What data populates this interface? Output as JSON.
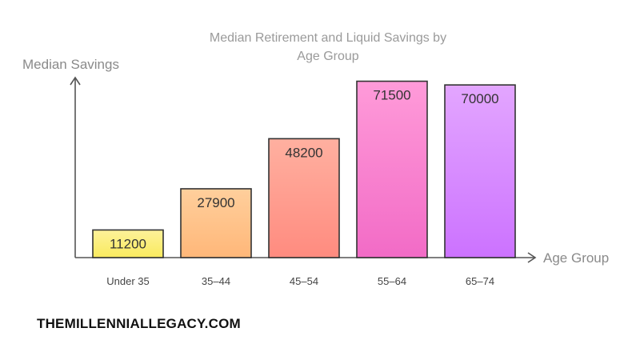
{
  "chart_data": {
    "type": "bar",
    "title_lines": [
      "Median Retirement and Liquid Savings by",
      "Age Group"
    ],
    "ylabel": "Median Savings",
    "xlabel": "Age Group",
    "categories": [
      "Under 35",
      "35–44",
      "45–54",
      "55–64",
      "65–74"
    ],
    "values": [
      11200,
      27900,
      48200,
      71500,
      70000
    ],
    "value_labels": [
      "11200",
      "27900",
      "48200",
      "71500",
      "70000"
    ],
    "ylim": [
      0,
      72000
    ],
    "grid": false,
    "colors": [
      [
        "#fdf29a",
        "#f9ea5e"
      ],
      [
        "#ffcf9c",
        "#ffb779"
      ],
      [
        "#ffb0a0",
        "#ff8b7f"
      ],
      [
        "#ff9bd9",
        "#f26bc6"
      ],
      [
        "#e3a6ff",
        "#cc72ff"
      ]
    ]
  },
  "footer": {
    "watermark": "THEMILLENNIALLEGACY.COM"
  }
}
